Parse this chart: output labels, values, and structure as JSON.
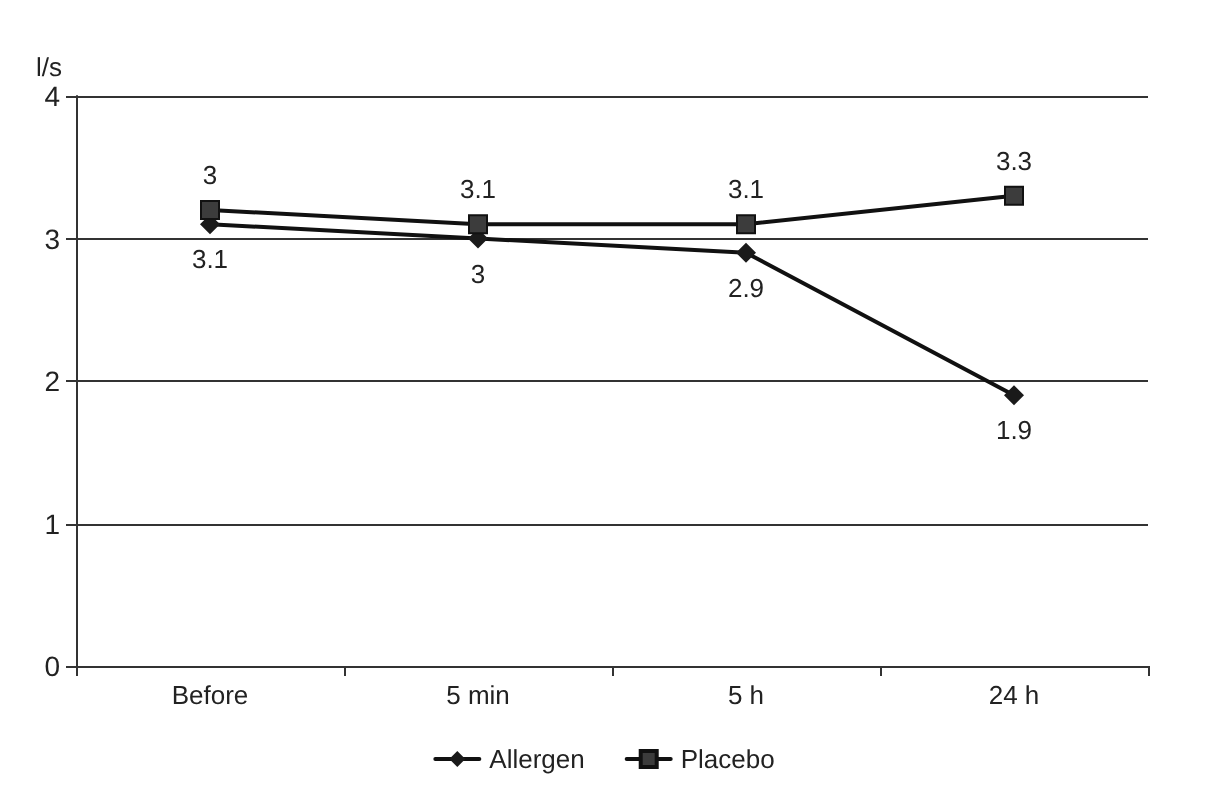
{
  "chart_data": {
    "type": "line",
    "ylabel": "l/s",
    "categories": [
      "Before",
      "5 min",
      "5 h",
      "24 h"
    ],
    "series": [
      {
        "name": "Allergen",
        "color": "#1a1a1a",
        "marker": "diamond",
        "values": [
          3.1,
          3.0,
          2.9,
          1.9
        ],
        "value_labels": [
          "3.1",
          "3",
          "2.9",
          "1.9"
        ]
      },
      {
        "name": "Placebo",
        "color": "#3c3c3c",
        "marker": "square",
        "values": [
          3.2,
          3.1,
          3.1,
          3.3
        ],
        "value_labels": [
          "3",
          "3.1",
          "3.1",
          "3.3"
        ]
      }
    ],
    "ylim": [
      0,
      4
    ],
    "yticks": [
      0,
      1,
      2,
      3,
      4
    ],
    "grid": "y",
    "legend": "bottom",
    "line_style": "solid"
  }
}
